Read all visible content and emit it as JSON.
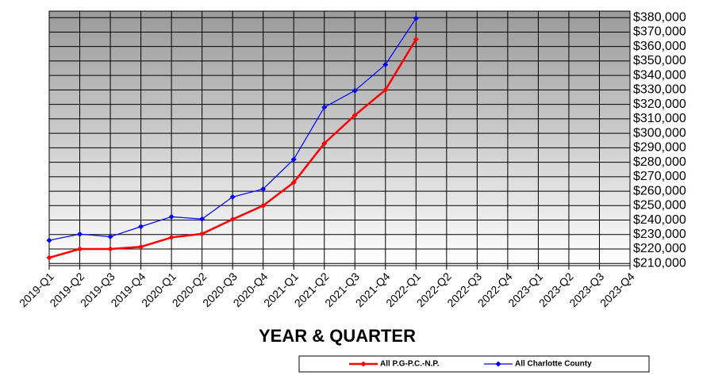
{
  "chart_data": {
    "type": "line",
    "x_label": "YEAR & QUARTER",
    "categories": [
      "2019-Q1",
      "2019-Q2",
      "2019-Q3",
      "2019-Q4",
      "2020-Q1",
      "2020-Q2",
      "2020-Q3",
      "2020-Q4",
      "2021-Q1",
      "2021-Q2",
      "2021-Q3",
      "2021-Q4",
      "2022-Q1",
      "2022-Q2",
      "2022-Q3",
      "2022-Q4",
      "2023-Q1",
      "2023-Q2",
      "2023-Q3",
      "2023-Q4"
    ],
    "series": [
      {
        "name": "All P.G-P.C.-N.P.",
        "color": "#ff0000",
        "values": [
          214000,
          220000,
          220000,
          221500,
          228000,
          230500,
          240500,
          250000,
          266000,
          293000,
          312500,
          330000,
          365000,
          null,
          null,
          null,
          null,
          null,
          null,
          null
        ]
      },
      {
        "name": "All Charlotte County",
        "color": "#0000ff",
        "values": [
          226000,
          230300,
          228500,
          235500,
          242300,
          240700,
          256000,
          261500,
          282000,
          318000,
          329500,
          347500,
          379500,
          null,
          null,
          null,
          null,
          null,
          null,
          null
        ]
      }
    ],
    "ylim": [
      208500,
      384500
    ],
    "yticks": [
      {
        "value": 210000,
        "label": "$210,000"
      },
      {
        "value": 220000,
        "label": "$220,000"
      },
      {
        "value": 230000,
        "label": "$230,000"
      },
      {
        "value": 240000,
        "label": "$240,000"
      },
      {
        "value": 250000,
        "label": "$250,000"
      },
      {
        "value": 260000,
        "label": "$260,000"
      },
      {
        "value": 270000,
        "label": "$270,000"
      },
      {
        "value": 280000,
        "label": "$280,000"
      },
      {
        "value": 290000,
        "label": "$290,000"
      },
      {
        "value": 300000,
        "label": "$300,000"
      },
      {
        "value": 310000,
        "label": "$310,000"
      },
      {
        "value": 320000,
        "label": "$320,000"
      },
      {
        "value": 330000,
        "label": "$330,000"
      },
      {
        "value": 340000,
        "label": "$340,000"
      },
      {
        "value": 350000,
        "label": "$350,000"
      },
      {
        "value": 360000,
        "label": "$360,000"
      },
      {
        "value": 370000,
        "label": "$370,000"
      },
      {
        "value": 380000,
        "label": "$380,000"
      }
    ],
    "grid": true,
    "y_axis_side": "right",
    "legend": "bottom"
  }
}
